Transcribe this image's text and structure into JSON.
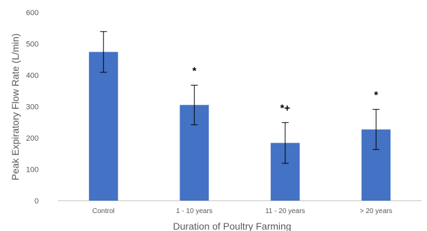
{
  "chart_data": {
    "type": "bar",
    "categories": [
      "Control",
      "1 - 10 years",
      "11 - 20 years",
      "> 20 years"
    ],
    "values": [
      474,
      305,
      184,
      227
    ],
    "error": [
      65,
      63,
      65,
      64
    ],
    "annotations": [
      "",
      "*",
      "*+",
      "*"
    ],
    "xlabel": "Duration of Poultry Farming",
    "ylabel": "Peak Expiratory Flow Rate (L/min)",
    "ylim": [
      0,
      600
    ],
    "yticks": [
      0,
      100,
      200,
      300,
      400,
      500,
      600
    ],
    "grid": false,
    "bar_color": "#4472C4",
    "axis_color": "#BFBFBF"
  }
}
